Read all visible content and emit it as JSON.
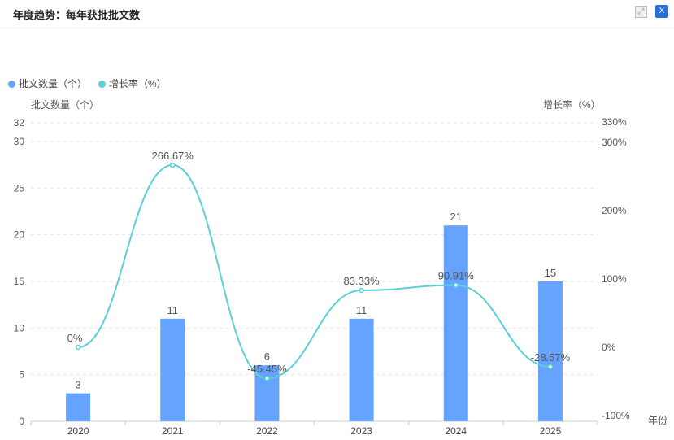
{
  "header": {
    "title": "年度趋势：每年获批批文数",
    "expand_icon": "expand-icon",
    "export_icon": "excel-export-icon"
  },
  "chart_data": {
    "type": "bar",
    "categories": [
      "2020",
      "2021",
      "2022",
      "2023",
      "2024",
      "2025"
    ],
    "series": [
      {
        "name": "批文数量（个）",
        "type": "bar",
        "axis": "left",
        "color": "#66a3ff",
        "values": [
          3,
          11,
          6,
          11,
          21,
          15
        ],
        "labels": [
          "3",
          "11",
          "6",
          "11",
          "21",
          "15"
        ]
      },
      {
        "name": "增长率（%）",
        "type": "line",
        "axis": "right",
        "color": "#5ad0d8",
        "values": [
          0,
          266.67,
          -45.45,
          83.33,
          90.91,
          -28.57
        ],
        "labels": [
          "0%",
          "266.67%",
          "-45.45%",
          "83.33%",
          "90.91%",
          "-28.57%"
        ]
      }
    ],
    "ylabel": "批文数量（个）",
    "y2label": "增长率（%）",
    "xlabel": "年份",
    "ylim": [
      0,
      32
    ],
    "yticks": [
      "0",
      "5",
      "10",
      "15",
      "20",
      "25",
      "30",
      "32"
    ],
    "ytick_values": [
      0,
      5,
      10,
      15,
      20,
      25,
      30,
      32
    ],
    "y2lim": [
      -100,
      330
    ],
    "y2ticks": [
      "-100%",
      "0%",
      "100%",
      "200%",
      "300%",
      "330%"
    ],
    "y2tick_values": [
      -100,
      0,
      100,
      200,
      300,
      330
    ],
    "legend": "top-left",
    "grid": true
  }
}
